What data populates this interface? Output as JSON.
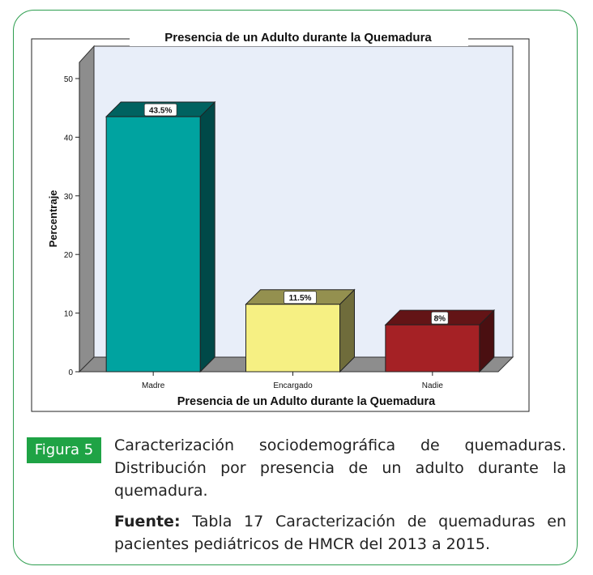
{
  "chart_data": {
    "type": "bar",
    "title": "Presencia de un Adulto durante la Quemadura",
    "xlabel": "Presencia de un Adulto durante la Quemadura",
    "ylabel": "Percentraje",
    "ylim": [
      0,
      50
    ],
    "yticks": [
      "0",
      "10",
      "20",
      "30",
      "40",
      "50"
    ],
    "categories": [
      "Madre",
      "Encargado",
      "Nadie"
    ],
    "values": [
      43.5,
      11.5,
      8
    ],
    "data_labels": [
      "43.5%",
      "11.5%",
      "8%"
    ],
    "colors": [
      "#00a3a0",
      "#f6f083",
      "#a52125"
    ],
    "grid": false
  },
  "figure": {
    "badge": "Figura 5",
    "caption": "Caracterización sociodemográfica de quemaduras. Distribución por presencia de un adulto durante la quemadura.",
    "source_label": "Fuente:",
    "source_text": "Tabla 17 Caracterización de quemaduras en pacientes pediátricos de HMCR del 2013 a 2015."
  }
}
